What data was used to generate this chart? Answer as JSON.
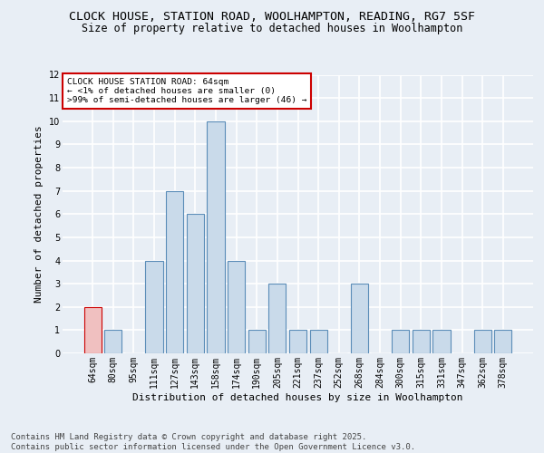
{
  "title1": "CLOCK HOUSE, STATION ROAD, WOOLHAMPTON, READING, RG7 5SF",
  "title2": "Size of property relative to detached houses in Woolhampton",
  "xlabel": "Distribution of detached houses by size in Woolhampton",
  "ylabel": "Number of detached properties",
  "categories": [
    "64sqm",
    "80sqm",
    "95sqm",
    "111sqm",
    "127sqm",
    "143sqm",
    "158sqm",
    "174sqm",
    "190sqm",
    "205sqm",
    "221sqm",
    "237sqm",
    "252sqm",
    "268sqm",
    "284sqm",
    "300sqm",
    "315sqm",
    "331sqm",
    "347sqm",
    "362sqm",
    "378sqm"
  ],
  "values": [
    2,
    1,
    0,
    4,
    7,
    6,
    10,
    4,
    1,
    3,
    1,
    1,
    0,
    3,
    0,
    1,
    1,
    1,
    0,
    1,
    1
  ],
  "bar_color": "#c9daea",
  "bar_edge_color": "#5b8db8",
  "highlight_index": 0,
  "highlight_color": "#f0c0c0",
  "highlight_edge_color": "#cc0000",
  "annotation_text": "CLOCK HOUSE STATION ROAD: 64sqm\n← <1% of detached houses are smaller (0)\n>99% of semi-detached houses are larger (46) →",
  "annotation_box_color": "#ffffff",
  "annotation_box_edge": "#cc0000",
  "ylim": [
    0,
    12
  ],
  "yticks": [
    0,
    1,
    2,
    3,
    4,
    5,
    6,
    7,
    8,
    9,
    10,
    11,
    12
  ],
  "footer": "Contains HM Land Registry data © Crown copyright and database right 2025.\nContains public sector information licensed under the Open Government Licence v3.0.",
  "bg_color": "#e8eef5",
  "plot_bg_color": "#e8eef5",
  "grid_color": "#ffffff",
  "title_fontsize": 9.5,
  "subtitle_fontsize": 8.5,
  "axis_label_fontsize": 8,
  "tick_fontsize": 7,
  "footer_fontsize": 6.5,
  "annot_fontsize": 6.8
}
